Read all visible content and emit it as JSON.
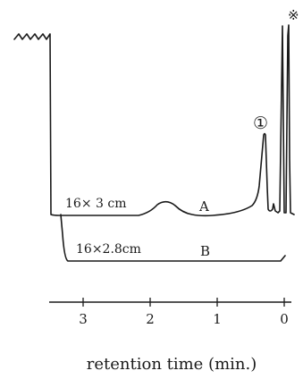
{
  "chart_data": {
    "type": "line",
    "title": "",
    "xlabel": "retention time (min.)",
    "ylabel": "",
    "xlim": [
      3.4,
      0
    ],
    "x_reversed": true,
    "x_ticks": [
      3,
      2,
      1,
      0
    ],
    "x_tick_labels": [
      "3",
      "2",
      "1",
      "0"
    ],
    "grid": false,
    "series": [
      {
        "name": "A",
        "column_label": "16× 3 cm",
        "peak_markers": [
          {
            "x": 0.33,
            "label": "①"
          }
        ]
      },
      {
        "name": "B",
        "column_label": "16×2.8cm"
      }
    ],
    "annotations": [
      {
        "label": "※",
        "x": 0.0
      }
    ]
  }
}
